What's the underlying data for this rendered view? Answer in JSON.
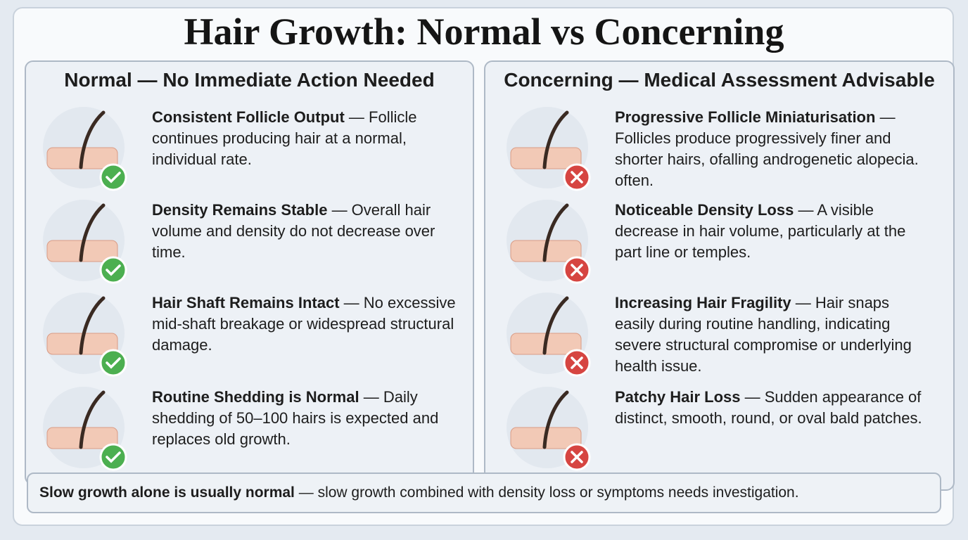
{
  "title": "Hair Growth: Normal vs Concerning",
  "panels": [
    {
      "heading": "Normal — No Immediate Action Needed",
      "items": [
        {
          "title": "Consistent Follicle Output",
          "text": "— Follicle continues producing hair at a normal, individual rate."
        },
        {
          "title": "Density Remains Stable",
          "text": "— Overall hair volume and density do not decrease over time."
        },
        {
          "title": "Hair Shaft Remains Intact",
          "text": "— No excessive mid-shaft breakage or widespread structural damage."
        },
        {
          "title": "Routine Shedding is Normal",
          "text": "— Daily shedding of 50–100 hairs is expected and replaces old growth."
        }
      ]
    },
    {
      "heading": "Concerning — Medical Assessment Advisable",
      "items": [
        {
          "title": "Progressive Follicle Miniaturisation",
          "text": "— Follicles produce progressively finer and shorter hairs, ofalling androgenetic alopecia. often."
        },
        {
          "title": "Noticeable Density Loss",
          "text": "— A visible decrease in hair volume, particularly at the part line or temples."
        },
        {
          "title": "Increasing Hair Fragility",
          "text": "— Hair snaps easily during routine handling, indicating severe structural compromise or underlying health issue."
        },
        {
          "title": "Patchy Hair Loss",
          "text": "— Sudden appearance of distinct, smooth, round, or oval bald patches."
        }
      ]
    }
  ],
  "footer": {
    "bold": "Slow growth alone is usually normal",
    "text": "— slow growth combined with density loss or symptoms needs investigation."
  }
}
